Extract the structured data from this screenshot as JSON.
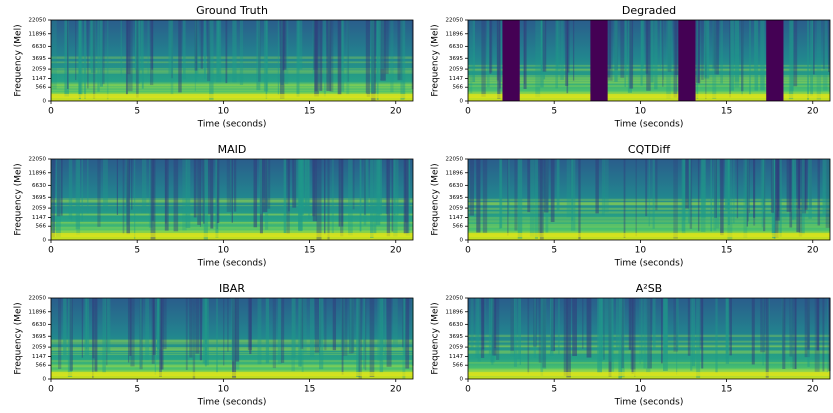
{
  "chart_data": [
    {
      "type": "spectrogram",
      "title": "Ground Truth",
      "xlabel": "Time (seconds)",
      "ylabel": "Frequency (Mel)",
      "xlim": [
        0,
        21
      ],
      "xticks": [
        0,
        5,
        10,
        15,
        20
      ],
      "ylim": [
        0,
        22050
      ],
      "yticks": [
        0,
        566,
        1147,
        2059,
        3695,
        6630,
        11896,
        22050
      ],
      "yscale": "mel"
    },
    {
      "type": "spectrogram",
      "title": "Degraded",
      "xlabel": "Time (seconds)",
      "ylabel": "Frequency (Mel)",
      "xlim": [
        0,
        21
      ],
      "xticks": [
        0,
        5,
        10,
        15,
        20
      ],
      "ylim": [
        0,
        22050
      ],
      "yticks": [
        0,
        566,
        1147,
        2059,
        3695,
        6630,
        11896,
        22050
      ],
      "yscale": "mel",
      "gaps": [
        [
          2,
          3
        ],
        [
          7.1,
          8.1
        ],
        [
          12.2,
          13.2
        ],
        [
          17.3,
          18.3
        ]
      ],
      "gap_color": "#440154"
    },
    {
      "type": "spectrogram",
      "title": "MAID",
      "xlabel": "Time (seconds)",
      "ylabel": "Frequency (Mel)",
      "xlim": [
        0,
        21
      ],
      "xticks": [
        0,
        5,
        10,
        15,
        20
      ],
      "ylim": [
        0,
        22050
      ],
      "yticks": [
        0,
        566,
        1147,
        2059,
        3695,
        6630,
        11896,
        22050
      ],
      "yscale": "mel"
    },
    {
      "type": "spectrogram",
      "title": "CQTDiff",
      "xlabel": "Time (seconds)",
      "ylabel": "Frequency (Mel)",
      "xlim": [
        0,
        21
      ],
      "xticks": [
        0,
        5,
        10,
        15,
        20
      ],
      "ylim": [
        0,
        22050
      ],
      "yticks": [
        0,
        566,
        1147,
        2059,
        3695,
        6630,
        11896,
        22050
      ],
      "yscale": "mel"
    },
    {
      "type": "spectrogram",
      "title": "IBAR",
      "xlabel": "Time (seconds)",
      "ylabel": "Frequency (Mel)",
      "xlim": [
        0,
        21
      ],
      "xticks": [
        0,
        5,
        10,
        15,
        20
      ],
      "ylim": [
        0,
        22050
      ],
      "yticks": [
        0,
        566,
        1147,
        2059,
        3695,
        6630,
        11896,
        22050
      ],
      "yscale": "mel"
    },
    {
      "type": "spectrogram",
      "title": "A²SB",
      "xlabel": "Time (seconds)",
      "ylabel": "Frequency (Mel)",
      "xlim": [
        0,
        21
      ],
      "xticks": [
        0,
        5,
        10,
        15,
        20
      ],
      "ylim": [
        0,
        22050
      ],
      "yticks": [
        0,
        566,
        1147,
        2059,
        3695,
        6630,
        11896,
        22050
      ],
      "yscale": "mel"
    }
  ]
}
